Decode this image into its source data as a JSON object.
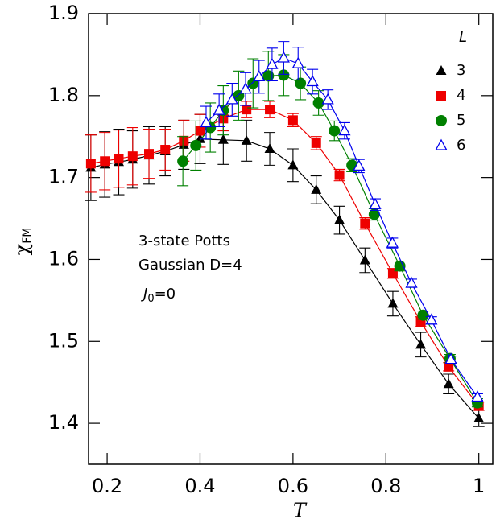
{
  "chart_data": {
    "type": "line",
    "y_label": {
      "symbol": "χ",
      "subscript": "FM"
    },
    "x_label": "T",
    "legend_title": "L",
    "legend": "upper right",
    "annotations": [
      "3-state Potts",
      "Gaussian D=4",
      {
        "symbol": "J",
        "subscript": "0",
        "rest": "=0"
      }
    ],
    "xlim": [
      0.16,
      1.03
    ],
    "ylim": [
      1.35,
      1.9
    ],
    "xticks": [
      0.2,
      0.4,
      0.6,
      0.8,
      {
        "value": 1.0,
        "label": "1"
      }
    ],
    "yticks": [
      1.4,
      1.5,
      1.6,
      1.7,
      1.8,
      1.9
    ],
    "series": [
      {
        "name": "3",
        "color": "#000000",
        "marker": "triangle",
        "x": [
          0.165,
          0.195,
          0.225,
          0.255,
          0.29,
          0.325,
          0.365,
          0.4,
          0.45,
          0.5,
          0.55,
          0.6,
          0.65,
          0.7,
          0.755,
          0.815,
          0.875,
          0.935,
          1.0
        ],
        "values": [
          1.712,
          1.716,
          1.719,
          1.722,
          1.727,
          1.732,
          1.74,
          1.747,
          1.746,
          1.745,
          1.735,
          1.715,
          1.685,
          1.648,
          1.599,
          1.546,
          1.496,
          1.448,
          1.406
        ],
        "errors": [
          0.04,
          0.04,
          0.04,
          0.035,
          0.035,
          0.03,
          0.03,
          0.03,
          0.03,
          0.025,
          0.02,
          0.02,
          0.017,
          0.017,
          0.015,
          0.015,
          0.015,
          0.012,
          0.01
        ]
      },
      {
        "name": "4",
        "color": "#ee0000",
        "marker": "square",
        "x": [
          0.165,
          0.195,
          0.225,
          0.255,
          0.29,
          0.325,
          0.365,
          0.4,
          0.45,
          0.5,
          0.55,
          0.6,
          0.65,
          0.7,
          0.755,
          0.815,
          0.875,
          0.935,
          1.0
        ],
        "values": [
          1.717,
          1.72,
          1.723,
          1.726,
          1.729,
          1.734,
          1.745,
          1.757,
          1.772,
          1.783,
          1.783,
          1.77,
          1.742,
          1.703,
          1.644,
          1.583,
          1.524,
          1.469,
          1.421
        ],
        "errors": [
          0.035,
          0.035,
          0.035,
          0.035,
          0.03,
          0.025,
          0.025,
          0.02,
          0.015,
          0.01,
          0.01,
          0.008,
          0.008,
          0.007,
          0.007,
          0.006,
          0.006,
          0.005,
          0.005
        ]
      },
      {
        "name": "5",
        "color": "#008000",
        "marker": "circle",
        "x": [
          0.363,
          0.391,
          0.422,
          0.45,
          0.483,
          0.514,
          0.547,
          0.58,
          0.616,
          0.655,
          0.689,
          0.727,
          0.775,
          0.83,
          0.88,
          0.938,
          0.997
        ],
        "values": [
          1.72,
          1.739,
          1.761,
          1.782,
          1.8,
          1.815,
          1.824,
          1.825,
          1.815,
          1.791,
          1.757,
          1.715,
          1.655,
          1.592,
          1.532,
          1.479,
          1.425
        ],
        "errors": [
          0.03,
          0.03,
          0.03,
          0.03,
          0.03,
          0.03,
          0.03,
          0.025,
          0.02,
          0.015,
          0.012,
          0.008,
          0.007,
          0.006,
          0.005,
          0.005,
          0.005
        ]
      },
      {
        "name": "6",
        "color": "#0000ee",
        "marker": "open-triangle",
        "x": [
          0.413,
          0.441,
          0.469,
          0.498,
          0.527,
          0.555,
          0.58,
          0.611,
          0.642,
          0.675,
          0.711,
          0.742,
          0.777,
          0.814,
          0.855,
          0.898,
          0.94,
          0.997
        ],
        "values": [
          1.767,
          1.782,
          1.795,
          1.808,
          1.823,
          1.838,
          1.846,
          1.839,
          1.817,
          1.795,
          1.757,
          1.714,
          1.667,
          1.62,
          1.571,
          1.526,
          1.478,
          1.432
        ],
        "errors": [
          0.02,
          0.02,
          0.02,
          0.02,
          0.02,
          0.02,
          0.02,
          0.02,
          0.015,
          0.012,
          0.01,
          0.008,
          0.007,
          0.006,
          0.005,
          0.004,
          0.004,
          0.004
        ]
      }
    ]
  }
}
